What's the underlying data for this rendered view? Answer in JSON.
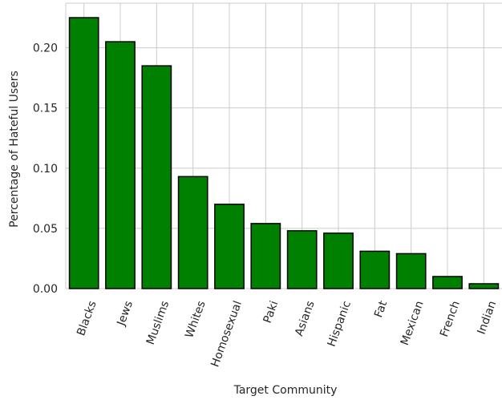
{
  "chart_data": {
    "type": "bar",
    "title": "",
    "xlabel": "Target Community",
    "ylabel": "Percentage of Hateful Users",
    "categories": [
      "Blacks",
      "Jews",
      "Muslims",
      "Whites",
      "Homosexual",
      "Paki",
      "Asians",
      "Hispanic",
      "Fat",
      "Mexican",
      "French",
      "Indian"
    ],
    "values": [
      0.225,
      0.205,
      0.185,
      0.093,
      0.07,
      0.054,
      0.048,
      0.046,
      0.031,
      0.029,
      0.01,
      0.004
    ],
    "ylim": [
      0,
      0.237
    ],
    "yticks": [
      0.0,
      0.05,
      0.1,
      0.15,
      0.2
    ],
    "ytick_labels": [
      "0.00",
      "0.05",
      "0.10",
      "0.15",
      "0.20"
    ],
    "grid": true,
    "bar_color": "#008000",
    "edge_color": "#000000",
    "grid_color": "#cccccc"
  }
}
